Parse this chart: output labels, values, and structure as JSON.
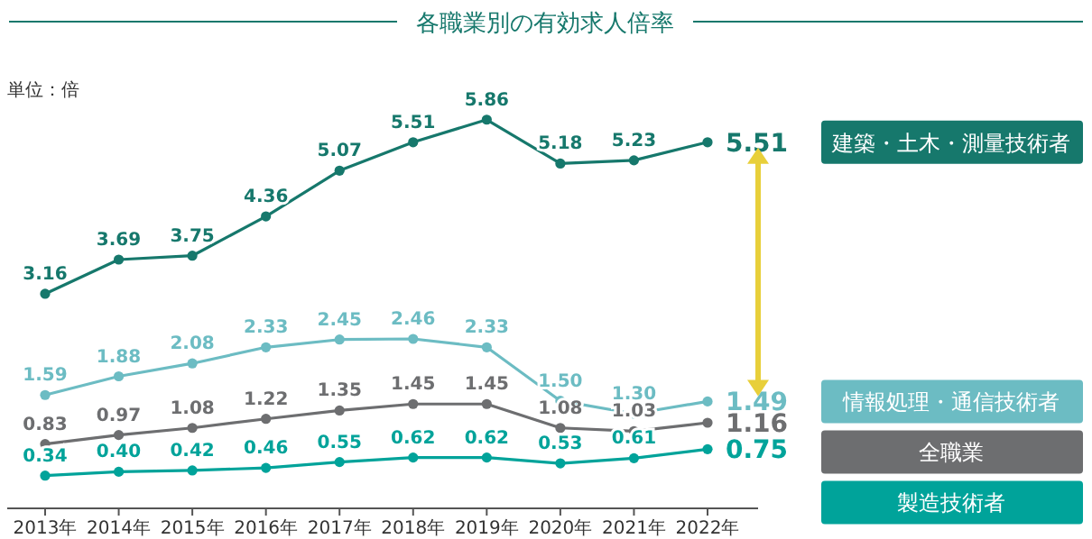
{
  "chart_data": {
    "type": "line",
    "title": "各職業別の有効求人倍率",
    "annotations": [
      "単位：倍"
    ],
    "categories": [
      "2013年",
      "2014年",
      "2015年",
      "2016年",
      "2017年",
      "2018年",
      "2019年",
      "2020年",
      "2021年",
      "2022年"
    ],
    "series": [
      {
        "name": "建築・土木・測量技術者",
        "color": "#16786c",
        "values": [
          3.16,
          3.69,
          3.75,
          4.36,
          5.07,
          5.51,
          5.86,
          5.18,
          5.23,
          5.51
        ],
        "value_labels": [
          "3.16",
          "3.69",
          "3.75",
          "4.36",
          "5.07",
          "5.51",
          "5.86",
          "5.18",
          "5.23",
          "5.51"
        ]
      },
      {
        "name": "情報処理・通信技術者",
        "color": "#6cbcc3",
        "values": [
          1.59,
          1.88,
          2.08,
          2.33,
          2.45,
          2.46,
          2.33,
          1.5,
          1.3,
          1.49
        ],
        "value_labels": [
          "1.59",
          "1.88",
          "2.08",
          "2.33",
          "2.45",
          "2.46",
          "2.33",
          "1.50",
          "1.30",
          "1.49"
        ]
      },
      {
        "name": "全職業",
        "color": "#6d6e70",
        "values": [
          0.83,
          0.97,
          1.08,
          1.22,
          1.35,
          1.45,
          1.45,
          1.08,
          1.03,
          1.16
        ],
        "value_labels": [
          "0.83",
          "0.97",
          "1.08",
          "1.22",
          "1.35",
          "1.45",
          "1.45",
          "1.08",
          "1.03",
          "1.16"
        ]
      },
      {
        "name": "製造技術者",
        "color": "#00a39a",
        "values": [
          0.34,
          0.4,
          0.42,
          0.46,
          0.55,
          0.62,
          0.62,
          0.53,
          0.61,
          0.75
        ],
        "value_labels": [
          "0.34",
          "0.40",
          "0.42",
          "0.46",
          "0.55",
          "0.62",
          "0.62",
          "0.53",
          "0.61",
          "0.75"
        ]
      }
    ],
    "legend": "right",
    "marker": "circle",
    "line_style": "solid",
    "grid": false
  }
}
